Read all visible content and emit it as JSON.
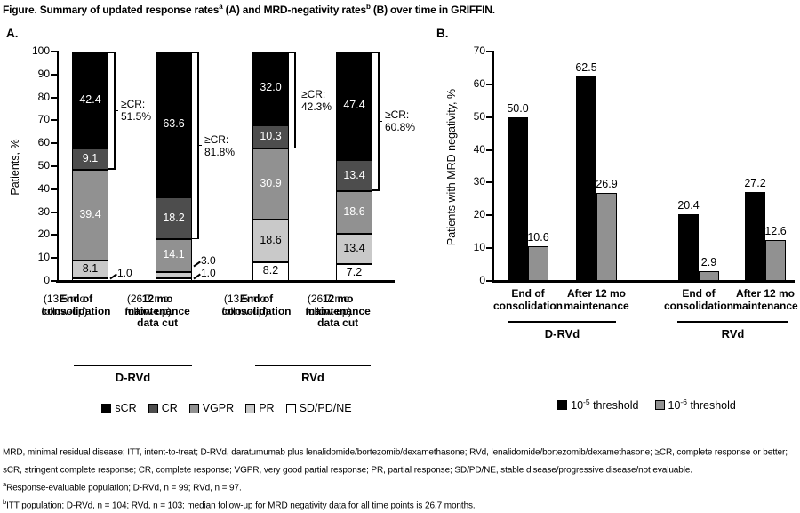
{
  "title": {
    "p1": "Figure. Summary of updated response rates",
    "s1": "a",
    "p2": " (A) and MRD-negativity rates",
    "s2": "b",
    "p3": " (B) over time in GRIFFIN."
  },
  "chart_data": [
    {
      "id": "A",
      "panel_letter": "A.",
      "type": "bar",
      "subtype": "stacked-vertical",
      "ylabel": "Patients, %",
      "ylim": [
        0,
        100
      ],
      "ytick_step": 10,
      "grid": false,
      "legend_position": "bottom",
      "legend_order": [
        "sCR",
        "CR",
        "VGPR",
        "PR",
        "SD/PD/NE"
      ],
      "palette": {
        "sCR": "#000000",
        "CR": "#4d4d4d",
        "VGPR": "#919191",
        "PR": "#c9c9c9",
        "SD/PD/NE": "#ffffff"
      },
      "text_colors": {
        "sCR": "#ffffff",
        "CR": "#ffffff",
        "VGPR": "#ffffff",
        "PR": "#000000",
        "SD/PD/NE": "#000000"
      },
      "groups": [
        "D-RVd",
        "RVd"
      ],
      "bars": [
        {
          "group": "D-RVd",
          "label_bold": "End of\nconsolidation",
          "label_plain": "(13.5 mo\nfollow-up)",
          "segments": [
            {
              "name": "SD/PD/NE",
              "value": 1.0,
              "label_outside": true
            },
            {
              "name": "PR",
              "value": 8.1
            },
            {
              "name": "VGPR",
              "value": 39.4
            },
            {
              "name": "CR",
              "value": 9.1
            },
            {
              "name": "sCR",
              "value": 42.4
            }
          ],
          "bracket": {
            "text": "≥CR:",
            "value_text": "51.5%",
            "span": 51.5
          }
        },
        {
          "group": "D-RVd",
          "label_bold": "12 mo\nmaintenance\ndata cut",
          "label_plain": "(26.7 mo\nfollow-up)",
          "segments": [
            {
              "name": "SD/PD/NE",
              "value": 1.0,
              "label_outside": true
            },
            {
              "name": "PR",
              "value": 3.0,
              "label_outside": true
            },
            {
              "name": "VGPR",
              "value": 14.1
            },
            {
              "name": "CR",
              "value": 18.2
            },
            {
              "name": "sCR",
              "value": 63.6
            }
          ],
          "bracket": {
            "text": "≥CR:",
            "value_text": "81.8%",
            "span": 81.8
          }
        },
        {
          "group": "RVd",
          "label_bold": "End of\nconsolidation",
          "label_plain": "(13.5 mo\nfollow-up)",
          "segments": [
            {
              "name": "SD/PD/NE",
              "value": 8.2
            },
            {
              "name": "PR",
              "value": 18.6
            },
            {
              "name": "VGPR",
              "value": 30.9
            },
            {
              "name": "CR",
              "value": 10.3
            },
            {
              "name": "sCR",
              "value": 32.0
            }
          ],
          "bracket": {
            "text": "≥CR:",
            "value_text": "42.3%",
            "span": 42.3
          }
        },
        {
          "group": "RVd",
          "label_bold": "12 mo\nmaintenance\ndata cut",
          "label_plain": "(26.7 mo\nfollow-up)",
          "segments": [
            {
              "name": "SD/PD/NE",
              "value": 7.2
            },
            {
              "name": "PR",
              "value": 13.4
            },
            {
              "name": "VGPR",
              "value": 18.6
            },
            {
              "name": "CR",
              "value": 13.4
            },
            {
              "name": "sCR",
              "value": 47.4
            }
          ],
          "bracket": {
            "text": "≥CR:",
            "value_text": "60.8%",
            "span": 60.8
          }
        }
      ]
    },
    {
      "id": "B",
      "panel_letter": "B.",
      "type": "bar",
      "subtype": "grouped-vertical",
      "ylabel": "Patients with MRD negativity, %",
      "ylim": [
        0,
        70
      ],
      "ytick_step": 10,
      "grid": false,
      "legend_position": "bottom",
      "groups": [
        "D-RVd",
        "RVd"
      ],
      "categories": [
        "End of\nconsolidation",
        "After 12 mo\nmaintenance",
        "End of\nconsolidation",
        "After 12 mo\nmaintenance"
      ],
      "series": [
        {
          "name_base": "10",
          "name_sup": "-5",
          "name_rest": " threshold",
          "color": "#000000",
          "values": [
            50.0,
            62.5,
            20.4,
            27.2
          ]
        },
        {
          "name_base": "10",
          "name_sup": "-6",
          "name_rest": " threshold",
          "color": "#919191",
          "values": [
            10.6,
            26.9,
            2.9,
            12.6
          ]
        }
      ]
    }
  ],
  "footnotes": [
    {
      "sup": "",
      "text": "MRD, minimal residual disease; ITT, intent-to-treat; D-RVd, daratumumab plus lenalidomide/bortezomib/dexamethasone; RVd, lenalidomide/bortezomib/dexamethasone; ≥CR, complete response or better;"
    },
    {
      "sup": "",
      "text": "sCR, stringent complete response; CR, complete response; VGPR, very good partial response; PR, partial response; SD/PD/NE, stable disease/progressive disease/not evaluable."
    },
    {
      "sup": "a",
      "text": "Response-evaluable population; D-RVd, n = 99; RVd, n = 97."
    },
    {
      "sup": "b",
      "text": "ITT population; D-RVd, n = 104; RVd, n = 103; median follow-up for MRD negativity data for all time points is 26.7 months."
    }
  ]
}
